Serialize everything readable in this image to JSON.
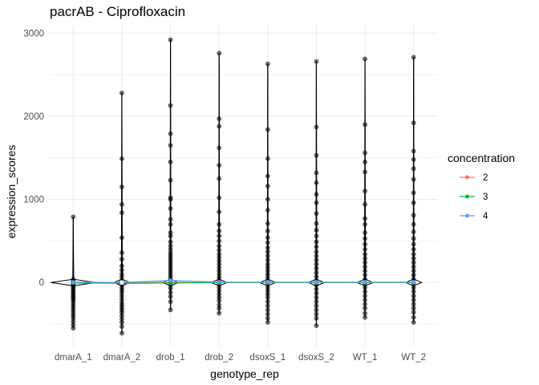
{
  "chart_data": {
    "type": "scatter",
    "title": "pacrAB - Ciprofloxacin",
    "xlabel": "genotype_rep",
    "ylabel": "expression_scores",
    "categories": [
      "dmarA_1",
      "dmarA_2",
      "drob_1",
      "drob_2",
      "dsoxS_1",
      "dsoxS_2",
      "WT_1",
      "WT_2"
    ],
    "ylim": [
      -770,
      3090
    ],
    "yticks": [
      0,
      1000,
      2000,
      3000
    ],
    "yticklabels": [
      "0",
      "1000",
      "2000",
      "3000"
    ],
    "grid": true,
    "legend_title": "concentration",
    "legend_position": "right",
    "points": {
      "dmarA_1": [
        790,
        40,
        20,
        10,
        -5,
        -20,
        -40,
        -60,
        -80,
        -100,
        -120,
        -140,
        -160,
        -180,
        -200,
        -220,
        -250,
        -280,
        -310,
        -340,
        -370,
        -400,
        -430,
        -470,
        -510,
        -550
      ],
      "dmarA_2": [
        2280,
        1490,
        1150,
        940,
        840,
        540,
        360,
        280,
        200,
        150,
        100,
        60,
        20,
        -10,
        -30,
        -60,
        -90,
        -120,
        -160,
        -200,
        -240,
        -270,
        -300,
        -330,
        -360,
        -400,
        -440,
        -480,
        -530,
        -610
      ],
      "drob_1": [
        2920,
        2130,
        1790,
        1650,
        1450,
        1230,
        1020,
        1000,
        890,
        760,
        700,
        600,
        560,
        490,
        440,
        400,
        360,
        330,
        300,
        270,
        240,
        210,
        180,
        150,
        120,
        90,
        60,
        30,
        0,
        -30,
        -70,
        -120,
        -170,
        -230,
        -330
      ],
      "drob_2": [
        2760,
        1970,
        1880,
        1620,
        1410,
        1250,
        1020,
        850,
        700,
        620,
        560,
        500,
        440,
        390,
        340,
        300,
        260,
        220,
        180,
        140,
        100,
        60,
        20,
        -20,
        -60,
        -100,
        -140,
        -180,
        -220,
        -270,
        -310,
        -370
      ],
      "dsoxS_1": [
        2630,
        1840,
        1490,
        1280,
        1160,
        1000,
        870,
        710,
        620,
        540,
        480,
        420,
        370,
        320,
        270,
        220,
        180,
        140,
        100,
        60,
        20,
        -20,
        -60,
        -100,
        -140,
        -180,
        -230,
        -280,
        -330,
        -380,
        -430,
        -480
      ],
      "dsoxS_2": [
        2660,
        1870,
        1530,
        1320,
        1200,
        1060,
        960,
        830,
        710,
        630,
        560,
        490,
        430,
        370,
        320,
        270,
        220,
        170,
        120,
        70,
        20,
        -30,
        -80,
        -130,
        -180,
        -230,
        -280,
        -330,
        -380,
        -430,
        -520
      ],
      "WT_1": [
        2690,
        1900,
        1560,
        1450,
        1330,
        1100,
        940,
        770,
        700,
        600,
        530,
        460,
        400,
        340,
        290,
        240,
        190,
        140,
        90,
        40,
        -10,
        -60,
        -110,
        -160,
        -210,
        -260,
        -310,
        -370,
        -420
      ],
      "WT_2": [
        2710,
        1920,
        1580,
        1480,
        1370,
        1240,
        1080,
        960,
        810,
        700,
        610,
        530,
        460,
        400,
        340,
        290,
        240,
        190,
        140,
        90,
        40,
        -10,
        -60,
        -110,
        -160,
        -210,
        -260,
        -310,
        -360,
        -420,
        -480
      ]
    },
    "series": [
      {
        "name": "2",
        "color": "#F8766D",
        "values": [
          0,
          -5,
          5,
          0,
          0,
          0,
          0,
          0
        ]
      },
      {
        "name": "3",
        "color": "#00BA38",
        "values": [
          -5,
          -10,
          -5,
          0,
          0,
          0,
          0,
          0
        ]
      },
      {
        "name": "4",
        "color": "#619CFF",
        "values": [
          5,
          0,
          25,
          5,
          5,
          5,
          5,
          5
        ]
      }
    ]
  }
}
